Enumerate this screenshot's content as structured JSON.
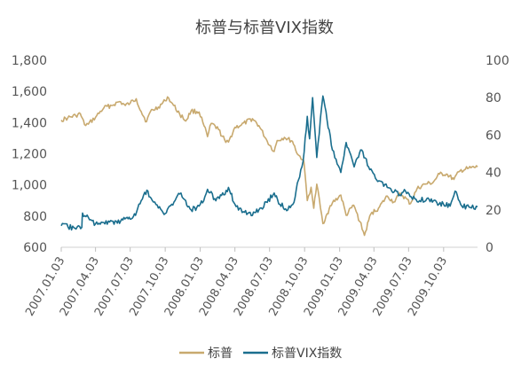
{
  "chart_data": {
    "type": "line",
    "title": "标普与标普VIX指数",
    "x_tick_labels": [
      "2007.01.03",
      "2007.04.03",
      "2007.07.03",
      "2007.10.03",
      "2008.01.03",
      "2008.04.03",
      "2008.07.03",
      "2008.10.03",
      "2009.01.03",
      "2009.04.03",
      "2009.07.03",
      "2009.10.03"
    ],
    "x_range": [
      "2007.01.03",
      "2009.12.31"
    ],
    "y_left": {
      "ticks": [
        "600",
        "800",
        "1,000",
        "1,200",
        "1,400",
        "1,600",
        "1,800"
      ],
      "range": [
        600,
        1800
      ]
    },
    "y_right": {
      "ticks": [
        "0",
        "20",
        "40",
        "60",
        "80",
        "100"
      ],
      "range": [
        0,
        100
      ]
    },
    "grid": false,
    "legend_position": "bottom",
    "series": [
      {
        "name": "标普",
        "axis": "left",
        "color": "#c8a96e",
        "points": [
          [
            "2007-01-03",
            1416
          ],
          [
            "2007-01-20",
            1430
          ],
          [
            "2007-02-10",
            1445
          ],
          [
            "2007-02-22",
            1457
          ],
          [
            "2007-03-05",
            1387
          ],
          [
            "2007-03-15",
            1390
          ],
          [
            "2007-04-03",
            1434
          ],
          [
            "2007-04-25",
            1495
          ],
          [
            "2007-05-15",
            1510
          ],
          [
            "2007-06-05",
            1535
          ],
          [
            "2007-06-20",
            1510
          ],
          [
            "2007-07-03",
            1525
          ],
          [
            "2007-07-19",
            1553
          ],
          [
            "2007-08-01",
            1470
          ],
          [
            "2007-08-15",
            1406
          ],
          [
            "2007-08-25",
            1470
          ],
          [
            "2007-09-15",
            1500
          ],
          [
            "2007-10-03",
            1540
          ],
          [
            "2007-10-09",
            1565
          ],
          [
            "2007-10-25",
            1510
          ],
          [
            "2007-11-10",
            1455
          ],
          [
            "2007-11-26",
            1410
          ],
          [
            "2007-12-10",
            1475
          ],
          [
            "2007-12-31",
            1468
          ],
          [
            "2008-01-10",
            1400
          ],
          [
            "2008-01-22",
            1310
          ],
          [
            "2008-02-01",
            1395
          ],
          [
            "2008-02-20",
            1355
          ],
          [
            "2008-03-10",
            1273
          ],
          [
            "2008-03-17",
            1275
          ],
          [
            "2008-04-03",
            1370
          ],
          [
            "2008-04-20",
            1385
          ],
          [
            "2008-05-19",
            1425
          ],
          [
            "2008-06-05",
            1380
          ],
          [
            "2008-06-27",
            1280
          ],
          [
            "2008-07-15",
            1215
          ],
          [
            "2008-07-23",
            1285
          ],
          [
            "2008-08-11",
            1305
          ],
          [
            "2008-09-01",
            1280
          ],
          [
            "2008-09-15",
            1195
          ],
          [
            "2008-09-30",
            1160
          ],
          [
            "2008-10-03",
            1100
          ],
          [
            "2008-10-10",
            900
          ],
          [
            "2008-10-20",
            985
          ],
          [
            "2008-10-27",
            850
          ],
          [
            "2008-11-04",
            1005
          ],
          [
            "2008-11-20",
            752
          ],
          [
            "2008-12-01",
            815
          ],
          [
            "2008-12-15",
            885
          ],
          [
            "2009-01-06",
            935
          ],
          [
            "2009-01-20",
            805
          ],
          [
            "2009-02-09",
            870
          ],
          [
            "2009-02-25",
            765
          ],
          [
            "2009-03-09",
            677
          ],
          [
            "2009-03-26",
            815
          ],
          [
            "2009-04-15",
            850
          ],
          [
            "2009-05-08",
            929
          ],
          [
            "2009-05-25",
            890
          ],
          [
            "2009-06-12",
            945
          ],
          [
            "2009-07-08",
            880
          ],
          [
            "2009-07-25",
            975
          ],
          [
            "2009-08-15",
            1005
          ],
          [
            "2009-09-05",
            1015
          ],
          [
            "2009-09-22",
            1070
          ],
          [
            "2009-10-10",
            1070
          ],
          [
            "2009-10-30",
            1035
          ],
          [
            "2009-11-15",
            1090
          ],
          [
            "2009-12-05",
            1105
          ],
          [
            "2009-12-31",
            1115
          ]
        ]
      },
      {
        "name": "标普VIX指数",
        "axis": "right",
        "color": "#1a6e8e",
        "points": [
          [
            "2007-01-03",
            11.5
          ],
          [
            "2007-02-05",
            10.5
          ],
          [
            "2007-02-26",
            10.6
          ],
          [
            "2007-02-28",
            18.3
          ],
          [
            "2007-03-15",
            16
          ],
          [
            "2007-04-03",
            12.5
          ],
          [
            "2007-05-10",
            13.5
          ],
          [
            "2007-06-08",
            14
          ],
          [
            "2007-06-25",
            16
          ],
          [
            "2007-07-03",
            15
          ],
          [
            "2007-07-20",
            19
          ],
          [
            "2007-08-01",
            25
          ],
          [
            "2007-08-16",
            30.5
          ],
          [
            "2007-08-30",
            25
          ],
          [
            "2007-09-15",
            21
          ],
          [
            "2007-10-03",
            18
          ],
          [
            "2007-10-20",
            23
          ],
          [
            "2007-11-10",
            28.5
          ],
          [
            "2007-11-20",
            26
          ],
          [
            "2007-12-10",
            20
          ],
          [
            "2007-12-31",
            22
          ],
          [
            "2008-01-15",
            27
          ],
          [
            "2008-01-22",
            31
          ],
          [
            "2008-02-10",
            26
          ],
          [
            "2008-03-05",
            28
          ],
          [
            "2008-03-17",
            32
          ],
          [
            "2008-04-03",
            23
          ],
          [
            "2008-04-25",
            19
          ],
          [
            "2008-05-19",
            17
          ],
          [
            "2008-06-05",
            20
          ],
          [
            "2008-06-27",
            24
          ],
          [
            "2008-07-15",
            29
          ],
          [
            "2008-07-30",
            23
          ],
          [
            "2008-08-20",
            20
          ],
          [
            "2008-09-05",
            24
          ],
          [
            "2008-09-17",
            36
          ],
          [
            "2008-09-29",
            46
          ],
          [
            "2008-10-10",
            70
          ],
          [
            "2008-10-16",
            58
          ],
          [
            "2008-10-24",
            80
          ],
          [
            "2008-11-04",
            48
          ],
          [
            "2008-11-20",
            80.9
          ],
          [
            "2008-12-01",
            68
          ],
          [
            "2008-12-15",
            52
          ],
          [
            "2009-01-06",
            40
          ],
          [
            "2009-01-20",
            56
          ],
          [
            "2009-02-10",
            43
          ],
          [
            "2009-03-02",
            52
          ],
          [
            "2009-03-20",
            43
          ],
          [
            "2009-04-10",
            36
          ],
          [
            "2009-05-08",
            32
          ],
          [
            "2009-06-10",
            28
          ],
          [
            "2009-06-25",
            30
          ],
          [
            "2009-07-10",
            27
          ],
          [
            "2009-08-01",
            25
          ],
          [
            "2009-08-20",
            26
          ],
          [
            "2009-09-15",
            24
          ],
          [
            "2009-10-20",
            22
          ],
          [
            "2009-11-02",
            30
          ],
          [
            "2009-11-20",
            22
          ],
          [
            "2009-12-15",
            21
          ],
          [
            "2009-12-31",
            21.6
          ]
        ]
      }
    ]
  }
}
